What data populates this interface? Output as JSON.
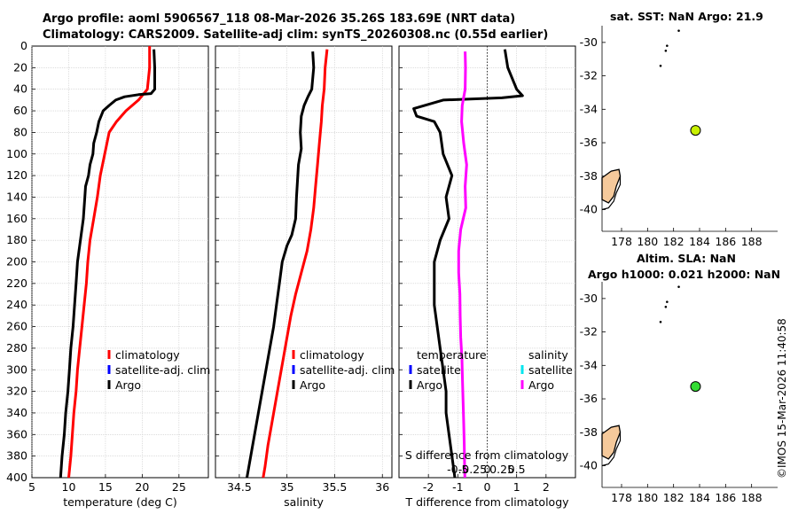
{
  "header": {
    "line1": "Argo profile: aoml 5906567_118 08-Mar-2026 35.26S 183.69E (NRT data)",
    "line2": "Climatology: CARS2009. Satellite-adj clim: synTS_20260308.nc (0.55d earlier)"
  },
  "credit": "©IMOS 15-Mar-2026 11:40:58",
  "chart_data": [
    {
      "id": "temperature",
      "type": "line",
      "xlabel": "temperature (deg C)",
      "ylabel": "",
      "xlim": [
        5,
        29
      ],
      "ylim": [
        400,
        0
      ],
      "xticks": [
        "5",
        "10",
        "15",
        "20",
        "25"
      ],
      "xtick_values": [
        5,
        10,
        15,
        20,
        25
      ],
      "yticks": [
        "0",
        "20",
        "40",
        "60",
        "80",
        "100",
        "120",
        "140",
        "160",
        "180",
        "200",
        "220",
        "240",
        "260",
        "280",
        "300",
        "320",
        "340",
        "360",
        "380",
        "400"
      ],
      "grid": true,
      "legend": [
        "climatology",
        "satellite-adj. clim",
        "Argo"
      ],
      "legend_colors": [
        "#ff0000",
        "#0000ff",
        "#000000"
      ],
      "series": [
        {
          "name": "climatology",
          "color": "#ff0000",
          "points": [
            [
              21.0,
              0
            ],
            [
              21.0,
              20
            ],
            [
              20.7,
              40
            ],
            [
              19.5,
              50
            ],
            [
              17.8,
              60
            ],
            [
              16.5,
              70
            ],
            [
              15.5,
              80
            ],
            [
              14.9,
              100
            ],
            [
              14.3,
              120
            ],
            [
              13.9,
              140
            ],
            [
              13.4,
              160
            ],
            [
              12.9,
              180
            ],
            [
              12.6,
              200
            ],
            [
              12.4,
              220
            ],
            [
              12.1,
              240
            ],
            [
              11.8,
              260
            ],
            [
              11.5,
              280
            ],
            [
              11.2,
              300
            ],
            [
              11.0,
              320
            ],
            [
              10.7,
              340
            ],
            [
              10.5,
              360
            ],
            [
              10.3,
              380
            ],
            [
              10.0,
              400
            ]
          ]
        },
        {
          "name": "Argo",
          "color": "#000000",
          "points": [
            [
              21.6,
              3
            ],
            [
              21.7,
              20
            ],
            [
              21.7,
              40
            ],
            [
              21.2,
              44
            ],
            [
              19.5,
              45
            ],
            [
              17.6,
              47
            ],
            [
              16.4,
              50
            ],
            [
              15.5,
              55
            ],
            [
              14.7,
              60
            ],
            [
              14.1,
              70
            ],
            [
              13.8,
              80
            ],
            [
              13.4,
              90
            ],
            [
              13.3,
              100
            ],
            [
              12.9,
              110
            ],
            [
              12.7,
              120
            ],
            [
              12.3,
              130
            ],
            [
              12.2,
              140
            ],
            [
              12.0,
              160
            ],
            [
              11.6,
              180
            ],
            [
              11.2,
              200
            ],
            [
              11.0,
              220
            ],
            [
              10.8,
              240
            ],
            [
              10.6,
              260
            ],
            [
              10.3,
              280
            ],
            [
              10.1,
              300
            ],
            [
              9.9,
              320
            ],
            [
              9.6,
              340
            ],
            [
              9.4,
              360
            ],
            [
              9.1,
              380
            ],
            [
              8.9,
              400
            ]
          ]
        }
      ]
    },
    {
      "id": "salinity",
      "type": "line",
      "xlabel": "salinity",
      "ylabel": "",
      "xlim": [
        34.25,
        36.1
      ],
      "ylim": [
        400,
        0
      ],
      "xticks": [
        "34.5",
        "35",
        "35.5",
        "36"
      ],
      "xtick_values": [
        34.5,
        35,
        35.5,
        36
      ],
      "grid": true,
      "legend": [
        "climatology",
        "satellite-adj. clim",
        "Argo"
      ],
      "legend_colors": [
        "#ff0000",
        "#0000ff",
        "#000000"
      ],
      "series": [
        {
          "name": "climatology",
          "color": "#ff0000",
          "points": [
            [
              35.42,
              3
            ],
            [
              35.4,
              20
            ],
            [
              35.39,
              40
            ],
            [
              35.37,
              55
            ],
            [
              35.36,
              70
            ],
            [
              35.34,
              90
            ],
            [
              35.32,
              110
            ],
            [
              35.3,
              130
            ],
            [
              35.28,
              150
            ],
            [
              35.25,
              170
            ],
            [
              35.21,
              190
            ],
            [
              35.15,
              210
            ],
            [
              35.09,
              230
            ],
            [
              35.04,
              250
            ],
            [
              35.0,
              270
            ],
            [
              34.96,
              290
            ],
            [
              34.92,
              310
            ],
            [
              34.88,
              330
            ],
            [
              34.84,
              350
            ],
            [
              34.8,
              370
            ],
            [
              34.77,
              390
            ],
            [
              34.75,
              400
            ]
          ]
        },
        {
          "name": "Argo",
          "color": "#000000",
          "points": [
            [
              35.27,
              5
            ],
            [
              35.28,
              20
            ],
            [
              35.26,
              40
            ],
            [
              35.22,
              47
            ],
            [
              35.18,
              55
            ],
            [
              35.15,
              65
            ],
            [
              35.14,
              80
            ],
            [
              35.15,
              95
            ],
            [
              35.12,
              110
            ],
            [
              35.11,
              125
            ],
            [
              35.1,
              140
            ],
            [
              35.09,
              160
            ],
            [
              35.05,
              175
            ],
            [
              35.0,
              185
            ],
            [
              34.95,
              200
            ],
            [
              34.92,
              220
            ],
            [
              34.89,
              240
            ],
            [
              34.86,
              260
            ],
            [
              34.82,
              280
            ],
            [
              34.78,
              300
            ],
            [
              34.74,
              320
            ],
            [
              34.7,
              340
            ],
            [
              34.66,
              360
            ],
            [
              34.62,
              380
            ],
            [
              34.58,
              400
            ]
          ]
        }
      ]
    },
    {
      "id": "difference",
      "type": "line",
      "xlabel": "T difference from climatology",
      "xlabel_top": "S difference from climatology",
      "xlim": [
        -3,
        3
      ],
      "ylim": [
        400,
        0
      ],
      "xticks": [
        "-2",
        "-1",
        "0",
        "1",
        "2"
      ],
      "xtick_values": [
        -2,
        -1,
        0,
        1,
        2
      ],
      "sticks": [
        "-0.5",
        "-0.25",
        "0",
        "0.25",
        "0.5"
      ],
      "stick_values": [
        -0.5,
        -0.25,
        0,
        0.25,
        0.5
      ],
      "grid": true,
      "legend_t_title": "temperature",
      "legend_s_title": "salinity",
      "legend_t": [
        "satellite",
        "Argo"
      ],
      "legend_t_colors": [
        "#0000ff",
        "#000000"
      ],
      "legend_s": [
        "satellite",
        "Argo"
      ],
      "legend_s_colors": [
        "#00e5ee",
        "#ff00ff"
      ],
      "series": [
        {
          "name": "T difference Argo",
          "color": "#000000",
          "points": [
            [
              0.6,
              3
            ],
            [
              0.7,
              20
            ],
            [
              1.0,
              40
            ],
            [
              1.2,
              46
            ],
            [
              0.5,
              48
            ],
            [
              -1.5,
              50
            ],
            [
              -2.5,
              58
            ],
            [
              -2.4,
              65
            ],
            [
              -1.8,
              70
            ],
            [
              -1.6,
              80
            ],
            [
              -1.5,
              100
            ],
            [
              -1.2,
              120
            ],
            [
              -1.4,
              140
            ],
            [
              -1.3,
              160
            ],
            [
              -1.6,
              180
            ],
            [
              -1.8,
              200
            ],
            [
              -1.8,
              220
            ],
            [
              -1.8,
              240
            ],
            [
              -1.7,
              260
            ],
            [
              -1.6,
              280
            ],
            [
              -1.5,
              300
            ],
            [
              -1.4,
              320
            ],
            [
              -1.4,
              340
            ],
            [
              -1.3,
              360
            ],
            [
              -1.2,
              380
            ],
            [
              -1.1,
              400
            ]
          ]
        },
        {
          "name": "S difference Argo",
          "color": "#ff00ff",
          "points": [
            [
              -0.75,
              5
            ],
            [
              -0.74,
              20
            ],
            [
              -0.75,
              40
            ],
            [
              -0.85,
              55
            ],
            [
              -0.87,
              70
            ],
            [
              -0.8,
              90
            ],
            [
              -0.7,
              110
            ],
            [
              -0.75,
              130
            ],
            [
              -0.73,
              150
            ],
            [
              -0.9,
              170
            ],
            [
              -0.97,
              190
            ],
            [
              -0.97,
              210
            ],
            [
              -0.93,
              230
            ],
            [
              -0.92,
              250
            ],
            [
              -0.9,
              270
            ],
            [
              -0.86,
              290
            ],
            [
              -0.84,
              310
            ],
            [
              -0.82,
              330
            ],
            [
              -0.8,
              350
            ],
            [
              -0.78,
              370
            ],
            [
              -0.77,
              390
            ],
            [
              -0.76,
              400
            ]
          ]
        }
      ]
    },
    {
      "id": "map_sst",
      "type": "scatter",
      "title": "sat. SST: NaN Argo: 21.9",
      "xlim": [
        176.5,
        190
      ],
      "ylim": [
        -41.3,
        -29
      ],
      "xticks": [
        "178",
        "180",
        "182",
        "184",
        "186",
        "188"
      ],
      "xtick_values": [
        178,
        180,
        182,
        184,
        186,
        188
      ],
      "yticks": [
        "-30",
        "-32",
        "-34",
        "-36",
        "-38",
        "-40"
      ],
      "ytick_values": [
        -30,
        -32,
        -34,
        -36,
        -38,
        -40
      ],
      "grid": false,
      "marker": {
        "lon": 183.69,
        "lat": -35.26,
        "color": "#c8f000"
      },
      "islands": [
        [
          182.4,
          -29.3
        ],
        [
          181.5,
          -30.2
        ],
        [
          181.4,
          -30.5
        ],
        [
          181.0,
          -31.4
        ]
      ]
    },
    {
      "id": "map_sla",
      "type": "scatter",
      "title": "Altim. SLA: NaN",
      "subtitle": "Argo h1000: 0.021 h2000: NaN",
      "xlim": [
        176.5,
        190
      ],
      "ylim": [
        -41.3,
        -29
      ],
      "xticks": [
        "178",
        "180",
        "182",
        "184",
        "186",
        "188"
      ],
      "xtick_values": [
        178,
        180,
        182,
        184,
        186,
        188
      ],
      "yticks": [
        "-30",
        "-32",
        "-34",
        "-36",
        "-38",
        "-40"
      ],
      "ytick_values": [
        -30,
        -32,
        -34,
        -36,
        -38,
        -40
      ],
      "grid": false,
      "marker": {
        "lon": 183.69,
        "lat": -35.26,
        "color": "#33dd33"
      },
      "islands": [
        [
          182.4,
          -29.3
        ],
        [
          181.5,
          -30.2
        ],
        [
          181.4,
          -30.5
        ],
        [
          181.0,
          -31.4
        ]
      ]
    }
  ]
}
